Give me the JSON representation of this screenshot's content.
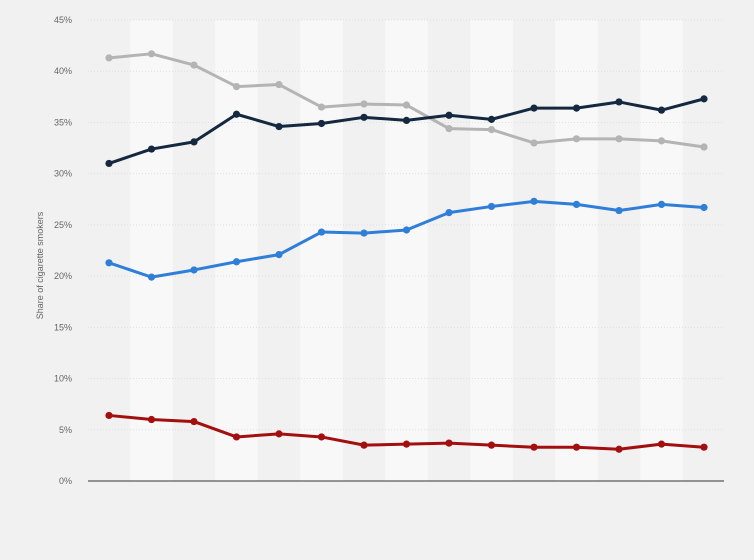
{
  "chart_data": {
    "type": "line",
    "ylabel": "Share of cigarette smokers",
    "xlabel": "",
    "title": "",
    "ylim": [
      0,
      45
    ],
    "yticks": [
      0,
      5,
      10,
      15,
      20,
      25,
      30,
      35,
      40,
      45
    ],
    "ytick_labels": [
      "0%",
      "5%",
      "10%",
      "15%",
      "20%",
      "25%",
      "30%",
      "35%",
      "40%",
      "45%"
    ],
    "x": [
      1,
      2,
      3,
      4,
      5,
      6,
      7,
      8,
      9,
      10,
      11,
      12,
      13,
      14,
      15
    ],
    "grid": true,
    "alternating_column_bands": true,
    "legend": "none",
    "series": [
      {
        "color": "#b4b4b4",
        "values": [
          41.3,
          41.7,
          40.6,
          38.5,
          38.7,
          36.5,
          36.8,
          36.7,
          34.4,
          34.3,
          33.0,
          33.4,
          33.4,
          33.2,
          32.6
        ]
      },
      {
        "color": "#14283f",
        "values": [
          31.0,
          32.4,
          33.1,
          35.8,
          34.6,
          34.9,
          35.5,
          35.2,
          35.7,
          35.3,
          36.4,
          36.4,
          37.0,
          36.2,
          37.3
        ]
      },
      {
        "color": "#2f7ed8",
        "values": [
          21.3,
          19.9,
          20.6,
          21.4,
          22.1,
          24.3,
          24.2,
          24.5,
          26.2,
          26.8,
          27.3,
          27.0,
          26.4,
          27.0,
          26.7
        ]
      },
      {
        "color": "#a30f0f",
        "values": [
          6.4,
          6.0,
          5.8,
          4.3,
          4.6,
          4.3,
          3.5,
          3.6,
          3.7,
          3.5,
          3.3,
          3.3,
          3.1,
          3.6,
          3.3
        ]
      }
    ]
  }
}
